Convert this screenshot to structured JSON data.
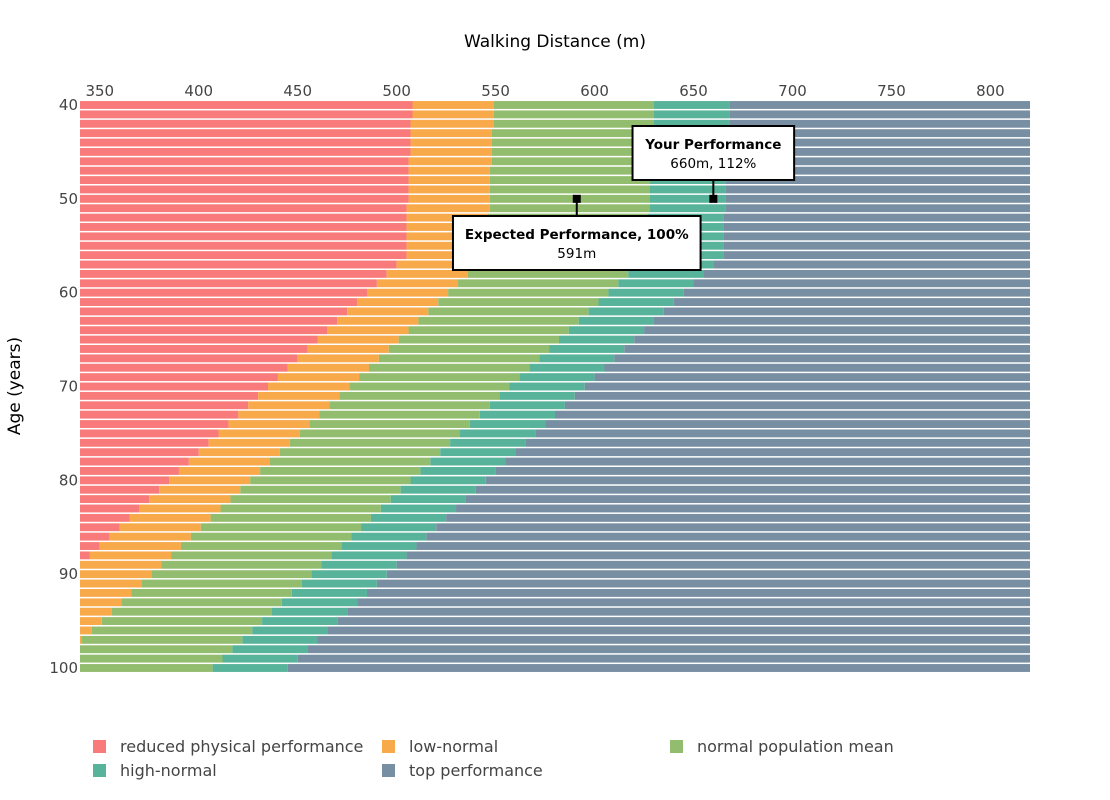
{
  "chart_data": {
    "type": "bar",
    "orientation": "horizontal",
    "barmode": "stack",
    "title": "Walking Distance (m)",
    "xlabel": "Walking Distance (m)",
    "ylabel": "Age (years)",
    "xlim": [
      340,
      820
    ],
    "ylim": [
      40,
      100
    ],
    "x_ticks": [
      350,
      400,
      450,
      500,
      550,
      600,
      650,
      700,
      750,
      800
    ],
    "y_ticks": [
      40,
      50,
      60,
      70,
      80,
      90,
      100
    ],
    "ages": [
      40,
      41,
      42,
      43,
      44,
      45,
      46,
      47,
      48,
      49,
      50,
      51,
      52,
      53,
      54,
      55,
      56,
      57,
      58,
      59,
      60,
      61,
      62,
      63,
      64,
      65,
      66,
      67,
      68,
      69,
      70,
      71,
      72,
      73,
      74,
      75,
      76,
      77,
      78,
      79,
      80,
      81,
      82,
      83,
      84,
      85,
      86,
      87,
      88,
      89,
      90,
      91,
      92,
      93,
      94,
      95,
      96,
      97,
      98,
      99,
      100
    ],
    "series": [
      {
        "name": "reduced physical performance",
        "color": "#f87a7a",
        "upper_edge": [
          508,
          508,
          507,
          507,
          507,
          507,
          506,
          506,
          506,
          506,
          506,
          505,
          505,
          505,
          505,
          505,
          505,
          500,
          495,
          490,
          485,
          480,
          475,
          470,
          465,
          460,
          455,
          450,
          445,
          440,
          435,
          430,
          425,
          420,
          415,
          410,
          405,
          400,
          395,
          390,
          385,
          380,
          375,
          370,
          365,
          360,
          355,
          350,
          345,
          340,
          340,
          340,
          340,
          340,
          340,
          340,
          340,
          340,
          340,
          340,
          340
        ]
      },
      {
        "name": "low-normal",
        "color": "#f8a94a",
        "upper_edge": [
          549,
          549,
          549,
          548,
          548,
          548,
          548,
          547,
          547,
          547,
          547,
          547,
          546,
          546,
          546,
          546,
          546,
          541,
          536,
          531,
          526,
          521,
          516,
          511,
          506,
          501,
          496,
          491,
          486,
          481,
          476,
          471,
          466,
          461,
          456,
          451,
          446,
          441,
          436,
          431,
          426,
          421,
          416,
          411,
          406,
          401,
          396,
          391,
          386,
          381,
          376,
          371,
          366,
          361,
          356,
          351,
          346,
          341,
          340,
          340,
          340
        ]
      },
      {
        "name": "normal population mean",
        "color": "#93bd6e",
        "upper_edge": [
          630,
          630,
          630,
          629,
          629,
          629,
          629,
          628,
          628,
          628,
          628,
          628,
          627,
          627,
          627,
          627,
          627,
          622,
          617,
          612,
          607,
          602,
          597,
          592,
          587,
          582,
          577,
          572,
          567,
          562,
          557,
          552,
          547,
          542,
          537,
          532,
          527,
          522,
          517,
          512,
          507,
          502,
          497,
          492,
          487,
          482,
          477,
          472,
          467,
          462,
          457,
          452,
          447,
          442,
          437,
          432,
          427,
          422,
          417,
          412,
          407
        ]
      },
      {
        "name": "high-normal",
        "color": "#57b39a",
        "upper_edge": [
          668,
          668,
          668,
          667,
          667,
          667,
          667,
          666,
          666,
          666,
          666,
          666,
          665,
          665,
          665,
          665,
          665,
          660,
          655,
          650,
          645,
          640,
          635,
          630,
          625,
          620,
          615,
          610,
          605,
          600,
          595,
          590,
          585,
          580,
          575,
          570,
          565,
          560,
          555,
          550,
          545,
          540,
          535,
          530,
          525,
          520,
          515,
          510,
          505,
          500,
          495,
          490,
          485,
          480,
          475,
          470,
          465,
          460,
          455,
          450,
          445
        ]
      },
      {
        "name": "top performance",
        "color": "#778ea3",
        "upper_edge": [
          820,
          820,
          820,
          820,
          820,
          820,
          820,
          820,
          820,
          820,
          820,
          820,
          820,
          820,
          820,
          820,
          820,
          820,
          820,
          820,
          820,
          820,
          820,
          820,
          820,
          820,
          820,
          820,
          820,
          820,
          820,
          820,
          820,
          820,
          820,
          820,
          820,
          820,
          820,
          820,
          820,
          820,
          820,
          820,
          820,
          820,
          820,
          820,
          820,
          820,
          820,
          820,
          820,
          820,
          820,
          820,
          820,
          820,
          820,
          820,
          820
        ]
      }
    ],
    "annotations": [
      {
        "name": "your-performance",
        "title": "Your Performance",
        "text": "660m, 112%",
        "x": 660,
        "y": 50,
        "placement": "above"
      },
      {
        "name": "expected-performance",
        "title": "Expected Performance, 100%",
        "text": "591m",
        "x": 591,
        "y": 50,
        "placement": "below"
      }
    ],
    "legend_position": "bottom"
  }
}
